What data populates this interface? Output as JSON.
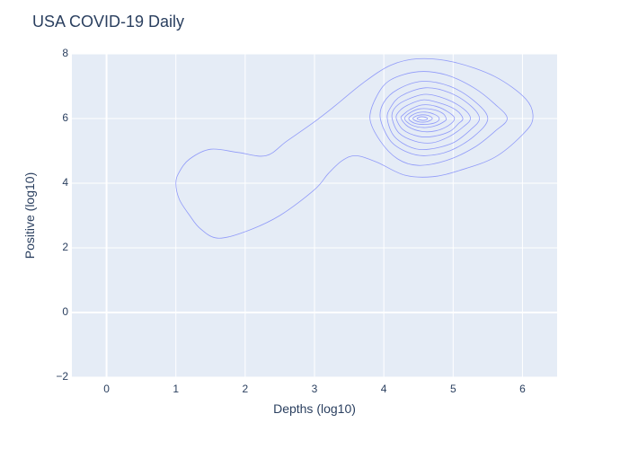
{
  "chart_data": {
    "type": "contour",
    "title": "USA COVID-19 Daily",
    "xlabel": "Depths (log10)",
    "ylabel": "Positive (log10)",
    "xlim": [
      -0.5,
      6.5
    ],
    "ylim": [
      -2,
      8
    ],
    "x_ticks": [
      0,
      1,
      2,
      3,
      4,
      5,
      6
    ],
    "y_ticks": [
      -2,
      0,
      2,
      4,
      6,
      8
    ],
    "grid": true,
    "colors": {
      "plot_background": "#e5ecf6",
      "grid": "#ffffff",
      "contour_line": "#636efa",
      "text": "#2a3f5f"
    },
    "contours": [
      {
        "level": 1,
        "points": [
          [
            1.0,
            4.0
          ],
          [
            1.05,
            3.5
          ],
          [
            1.2,
            3.0
          ],
          [
            1.35,
            2.6
          ],
          [
            1.6,
            2.3
          ],
          [
            2.0,
            2.5
          ],
          [
            2.5,
            3.0
          ],
          [
            3.0,
            3.8
          ],
          [
            3.2,
            4.3
          ],
          [
            3.4,
            4.7
          ],
          [
            3.6,
            4.85
          ],
          [
            3.9,
            4.65
          ],
          [
            4.3,
            4.25
          ],
          [
            4.7,
            4.2
          ],
          [
            5.1,
            4.4
          ],
          [
            5.6,
            4.8
          ],
          [
            6.0,
            5.5
          ],
          [
            6.15,
            6.0
          ],
          [
            6.05,
            6.6
          ],
          [
            5.6,
            7.3
          ],
          [
            5.0,
            7.75
          ],
          [
            4.5,
            7.85
          ],
          [
            4.1,
            7.65
          ],
          [
            3.7,
            7.1
          ],
          [
            3.3,
            6.4
          ],
          [
            3.0,
            5.9
          ],
          [
            2.6,
            5.3
          ],
          [
            2.3,
            4.85
          ],
          [
            1.9,
            4.95
          ],
          [
            1.5,
            5.05
          ],
          [
            1.2,
            4.75
          ],
          [
            1.05,
            4.35
          ]
        ]
      },
      {
        "level": 2,
        "points": [
          [
            3.8,
            6.0
          ],
          [
            3.95,
            5.3
          ],
          [
            4.2,
            4.75
          ],
          [
            4.5,
            4.55
          ],
          [
            4.9,
            4.7
          ],
          [
            5.3,
            5.1
          ],
          [
            5.6,
            5.6
          ],
          [
            5.78,
            6.0
          ],
          [
            5.6,
            6.45
          ],
          [
            5.3,
            6.95
          ],
          [
            4.9,
            7.35
          ],
          [
            4.5,
            7.45
          ],
          [
            4.1,
            7.2
          ],
          [
            3.9,
            6.7
          ]
        ]
      },
      {
        "level": 3,
        "points": [
          [
            3.95,
            6.0
          ],
          [
            4.1,
            5.3
          ],
          [
            4.35,
            4.95
          ],
          [
            4.6,
            4.85
          ],
          [
            4.95,
            5.0
          ],
          [
            5.3,
            5.45
          ],
          [
            5.5,
            6.0
          ],
          [
            5.3,
            6.55
          ],
          [
            4.95,
            7.0
          ],
          [
            4.55,
            7.15
          ],
          [
            4.2,
            6.9
          ],
          [
            4.0,
            6.5
          ]
        ]
      },
      {
        "level": 4,
        "points": [
          [
            4.05,
            6.0
          ],
          [
            4.15,
            5.45
          ],
          [
            4.4,
            5.1
          ],
          [
            4.65,
            5.05
          ],
          [
            5.0,
            5.25
          ],
          [
            5.25,
            5.65
          ],
          [
            5.38,
            6.0
          ],
          [
            5.25,
            6.4
          ],
          [
            4.95,
            6.8
          ],
          [
            4.6,
            6.95
          ],
          [
            4.25,
            6.7
          ],
          [
            4.1,
            6.35
          ]
        ]
      },
      {
        "level": 5,
        "points": [
          [
            4.12,
            6.0
          ],
          [
            4.22,
            5.55
          ],
          [
            4.45,
            5.3
          ],
          [
            4.7,
            5.25
          ],
          [
            4.95,
            5.45
          ],
          [
            5.15,
            5.75
          ],
          [
            5.25,
            6.0
          ],
          [
            5.15,
            6.3
          ],
          [
            4.9,
            6.6
          ],
          [
            4.6,
            6.75
          ],
          [
            4.3,
            6.55
          ],
          [
            4.15,
            6.3
          ]
        ]
      },
      {
        "level": 6,
        "points": [
          [
            4.18,
            6.0
          ],
          [
            4.28,
            5.65
          ],
          [
            4.5,
            5.45
          ],
          [
            4.72,
            5.45
          ],
          [
            4.95,
            5.6
          ],
          [
            5.08,
            5.85
          ],
          [
            5.14,
            6.0
          ],
          [
            5.05,
            6.25
          ],
          [
            4.85,
            6.45
          ],
          [
            4.58,
            6.58
          ],
          [
            4.35,
            6.42
          ],
          [
            4.22,
            6.22
          ]
        ]
      },
      {
        "level": 7,
        "points": [
          [
            4.25,
            6.0
          ],
          [
            4.35,
            5.75
          ],
          [
            4.55,
            5.6
          ],
          [
            4.75,
            5.62
          ],
          [
            4.93,
            5.78
          ],
          [
            5.02,
            6.0
          ],
          [
            4.93,
            6.2
          ],
          [
            4.75,
            6.38
          ],
          [
            4.55,
            6.42
          ],
          [
            4.38,
            6.28
          ],
          [
            4.28,
            6.12
          ]
        ]
      },
      {
        "level": 8,
        "points": [
          [
            4.3,
            6.0
          ],
          [
            4.4,
            5.8
          ],
          [
            4.58,
            5.72
          ],
          [
            4.75,
            5.78
          ],
          [
            4.88,
            5.92
          ],
          [
            4.9,
            6.0
          ],
          [
            4.85,
            6.16
          ],
          [
            4.7,
            6.28
          ],
          [
            4.52,
            6.3
          ],
          [
            4.38,
            6.18
          ]
        ]
      },
      {
        "level": 9,
        "points": [
          [
            4.36,
            6.0
          ],
          [
            4.45,
            5.85
          ],
          [
            4.6,
            5.82
          ],
          [
            4.75,
            5.88
          ],
          [
            4.8,
            6.0
          ],
          [
            4.74,
            6.12
          ],
          [
            4.6,
            6.2
          ],
          [
            4.46,
            6.16
          ]
        ]
      },
      {
        "level": 10,
        "points": [
          [
            4.42,
            6.0
          ],
          [
            4.5,
            5.9
          ],
          [
            4.62,
            5.9
          ],
          [
            4.7,
            6.0
          ],
          [
            4.63,
            6.1
          ],
          [
            4.5,
            6.1
          ]
        ]
      },
      {
        "level": 11,
        "points": [
          [
            4.48,
            6.0
          ],
          [
            4.54,
            5.95
          ],
          [
            4.6,
            5.95
          ],
          [
            4.63,
            6.0
          ],
          [
            4.58,
            6.05
          ],
          [
            4.52,
            6.05
          ]
        ]
      }
    ]
  }
}
